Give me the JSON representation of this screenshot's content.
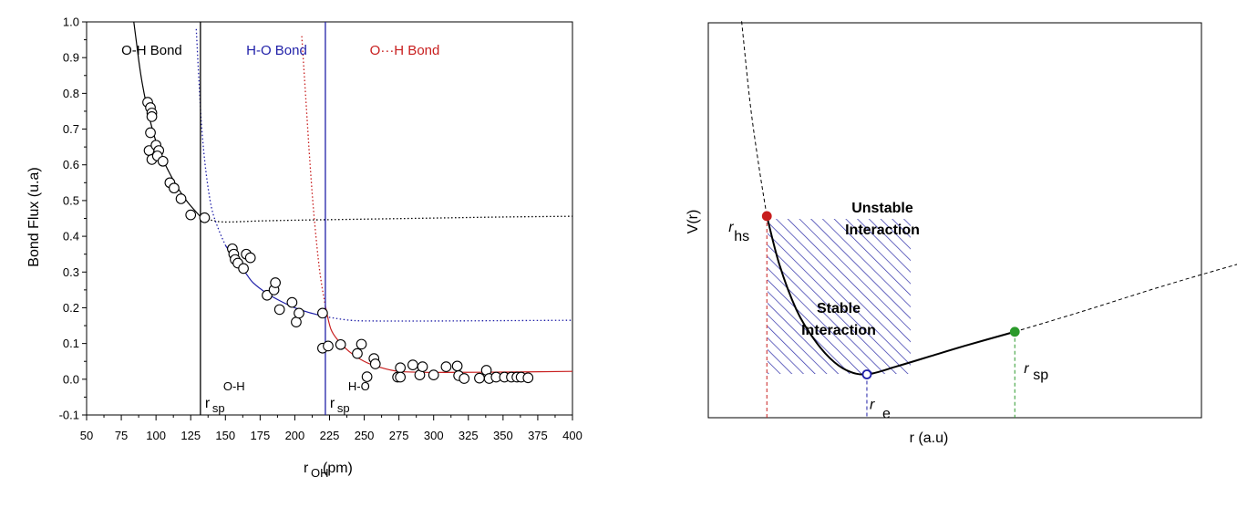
{
  "chart_data": [
    {
      "type": "scatter",
      "title": "",
      "xlabel": "r",
      "xlabel_sub": "OH",
      "xlabel_unit": "(pm)",
      "ylabel": "Bond Flux (u.a)",
      "xlim": [
        50,
        400
      ],
      "ylim": [
        -0.1,
        1.0
      ],
      "xticks": [
        50,
        75,
        100,
        125,
        150,
        175,
        200,
        225,
        250,
        275,
        300,
        325,
        350,
        375,
        400
      ],
      "yticks": [
        -0.1,
        0.0,
        0.1,
        0.2,
        0.3,
        0.4,
        0.5,
        0.6,
        0.7,
        0.8,
        0.9,
        1.0
      ],
      "ytick_labels": [
        "-0.1",
        "0.0",
        "0.1",
        "0.2",
        "0.3",
        "0.4",
        "0.5",
        "0.6",
        "0.7",
        "0.8",
        "0.9",
        "1.0"
      ],
      "grid": false,
      "regions": [
        {
          "label": "O-H Bond",
          "color": "#000000",
          "x": 75
        },
        {
          "label": "H-O Bond",
          "color": "#1f1fa8",
          "x": 165
        },
        {
          "label": "O···H Bond",
          "color": "#c81e1e",
          "x": 254
        }
      ],
      "vlines": [
        {
          "x": 132,
          "color": "#000000",
          "label": "r",
          "sub": "sp",
          "sup": "O-H"
        },
        {
          "x": 222,
          "color": "#1f1fa8",
          "label": "r",
          "sub": "sp",
          "sup": "H-O"
        }
      ],
      "points": [
        [
          94,
          0.775
        ],
        [
          96,
          0.76
        ],
        [
          97,
          0.745
        ],
        [
          97,
          0.735
        ],
        [
          96,
          0.69
        ],
        [
          95,
          0.64
        ],
        [
          97,
          0.615
        ],
        [
          100,
          0.655
        ],
        [
          102,
          0.64
        ],
        [
          101,
          0.625
        ],
        [
          105,
          0.61
        ],
        [
          110,
          0.55
        ],
        [
          113,
          0.535
        ],
        [
          118,
          0.505
        ],
        [
          125,
          0.46
        ],
        [
          135,
          0.452
        ],
        [
          155,
          0.365
        ],
        [
          156,
          0.35
        ],
        [
          157,
          0.335
        ],
        [
          159,
          0.325
        ],
        [
          163,
          0.31
        ],
        [
          165,
          0.35
        ],
        [
          168,
          0.34
        ],
        [
          180,
          0.235
        ],
        [
          185,
          0.25
        ],
        [
          186,
          0.27
        ],
        [
          189,
          0.195
        ],
        [
          198,
          0.215
        ],
        [
          201,
          0.16
        ],
        [
          203,
          0.185
        ],
        [
          220,
          0.185
        ],
        [
          220,
          0.087
        ],
        [
          224,
          0.093
        ],
        [
          233,
          0.097
        ],
        [
          245,
          0.072
        ],
        [
          248,
          0.098
        ],
        [
          252,
          0.007
        ],
        [
          257,
          0.058
        ],
        [
          258,
          0.043
        ],
        [
          274,
          0.006
        ],
        [
          276,
          0.032
        ],
        [
          276,
          0.006
        ],
        [
          285,
          0.04
        ],
        [
          290,
          0.012
        ],
        [
          292,
          0.035
        ],
        [
          300,
          0.012
        ],
        [
          309,
          0.035
        ],
        [
          317,
          0.037
        ],
        [
          318,
          0.01
        ],
        [
          322,
          0.002
        ],
        [
          333,
          0.003
        ],
        [
          338,
          0.025
        ],
        [
          340,
          0.002
        ],
        [
          345,
          0.006
        ],
        [
          351,
          0.006
        ],
        [
          356,
          0.006
        ],
        [
          360,
          0.006
        ],
        [
          363,
          0.006
        ],
        [
          368,
          0.004
        ]
      ],
      "curves": [
        {
          "name": "O-H fit",
          "color": "#000000",
          "style": "solid",
          "x": [
            84,
            86,
            88,
            90,
            93,
            96,
            100,
            105,
            110,
            115,
            120,
            125,
            132
          ],
          "y": [
            1.0,
            0.94,
            0.88,
            0.83,
            0.77,
            0.72,
            0.665,
            0.615,
            0.575,
            0.54,
            0.51,
            0.485,
            0.455
          ]
        },
        {
          "name": "O-H tail",
          "color": "#000000",
          "style": "dotted",
          "x": [
            132,
            140,
            150,
            175,
            200,
            250,
            300,
            350,
            400
          ],
          "y": [
            0.455,
            0.445,
            0.44,
            0.443,
            0.445,
            0.448,
            0.451,
            0.454,
            0.456
          ]
        },
        {
          "name": "H-O fit",
          "color": "#1f1fa8",
          "style": "solid",
          "x": [
            150,
            155,
            160,
            165,
            170,
            180,
            190,
            200,
            210,
            222
          ],
          "y": [
            0.375,
            0.345,
            0.32,
            0.295,
            0.27,
            0.24,
            0.218,
            0.2,
            0.187,
            0.175
          ]
        },
        {
          "name": "H-O inner",
          "color": "#1f1fa8",
          "style": "dotted",
          "x": [
            129,
            131,
            133,
            136,
            140,
            145,
            150
          ],
          "y": [
            0.98,
            0.83,
            0.7,
            0.58,
            0.48,
            0.42,
            0.375
          ]
        },
        {
          "name": "H-O tail",
          "color": "#1f1fa8",
          "style": "dotted",
          "x": [
            222,
            240,
            260,
            300,
            350,
            400
          ],
          "y": [
            0.175,
            0.165,
            0.163,
            0.163,
            0.164,
            0.165
          ]
        },
        {
          "name": "O···H fit",
          "color": "#c81e1e",
          "style": "solid",
          "x": [
            222,
            226,
            232,
            240,
            250,
            260,
            275,
            300,
            350,
            400
          ],
          "y": [
            0.205,
            0.14,
            0.105,
            0.075,
            0.05,
            0.035,
            0.022,
            0.019,
            0.02,
            0.022
          ]
        },
        {
          "name": "O···H inner",
          "color": "#c81e1e",
          "style": "dotted",
          "x": [
            205,
            208,
            211,
            214,
            218,
            222
          ],
          "y": [
            0.96,
            0.78,
            0.6,
            0.45,
            0.3,
            0.205
          ]
        }
      ]
    },
    {
      "type": "line",
      "title": "",
      "xlabel": "r (a.u)",
      "ylabel": "V(r)",
      "grid": false,
      "xlim": [
        0,
        10
      ],
      "ylim": [
        0,
        10
      ],
      "legend": "none",
      "hatch_label_top": [
        "Unstable",
        "Interaction"
      ],
      "hatch_label_mid": [
        "Stable",
        "Interaction"
      ],
      "markers": [
        {
          "name": "r_hs",
          "label": "r",
          "sub": "hs",
          "color": "#c81e1e",
          "x": 1.25,
          "y": 4.9
        },
        {
          "name": "r_e",
          "label": "r",
          "sub": "e",
          "color": "#1f1fa8",
          "x": 2.44,
          "y": 1.0
        },
        {
          "name": "r_sp",
          "label": "r",
          "sub": "sp",
          "color": "#2a9a2a",
          "x": 4.2,
          "y": 2.05
        }
      ],
      "potential_curve": {
        "x": [
          0.95,
          1.05,
          1.15,
          1.25,
          1.4,
          1.6,
          1.8,
          2.0,
          2.2,
          2.44,
          2.8,
          3.2,
          3.6,
          4.2,
          5.0,
          6.0,
          7.0,
          8.0,
          9.0,
          10.0
        ],
        "y": [
          9.7,
          7.7,
          6.2,
          4.9,
          3.7,
          2.6,
          1.9,
          1.4,
          1.1,
          1.0,
          1.2,
          1.45,
          1.7,
          2.05,
          2.55,
          3.2,
          3.8,
          4.35,
          4.9,
          5.35
        ]
      }
    }
  ]
}
